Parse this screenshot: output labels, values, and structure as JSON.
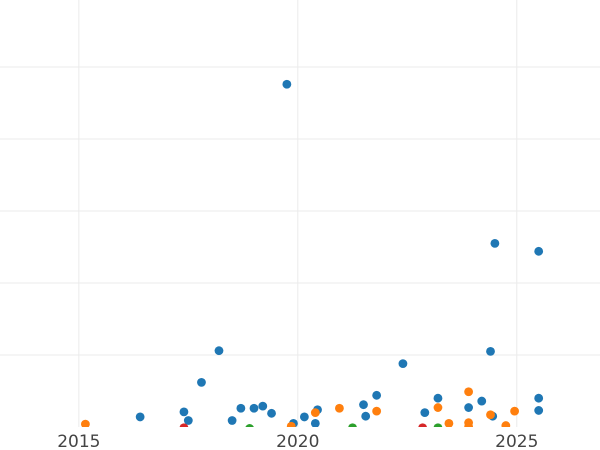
{
  "chart_data": {
    "type": "scatter",
    "title": "",
    "xlabel": "",
    "ylabel": "",
    "xlim": [
      2013.2,
      2026.9
    ],
    "ylim": [
      0,
      60
    ],
    "x_ticks": [
      2015,
      2020,
      2025
    ],
    "x_tick_labels": [
      "2015",
      "2020",
      "2025"
    ],
    "y_gridlines": [
      10,
      20,
      30,
      40,
      50,
      60
    ],
    "grid": true,
    "legend": "none",
    "series": [
      {
        "color": "#1f77b4",
        "points": [
          {
            "x": 2016.4,
            "y": 1.4
          },
          {
            "x": 2017.4,
            "y": 2.1
          },
          {
            "x": 2017.5,
            "y": 0.9
          },
          {
            "x": 2017.8,
            "y": 6.2
          },
          {
            "x": 2018.2,
            "y": 10.6
          },
          {
            "x": 2018.5,
            "y": 0.9
          },
          {
            "x": 2018.7,
            "y": 2.6
          },
          {
            "x": 2019.0,
            "y": 2.6
          },
          {
            "x": 2019.2,
            "y": 2.9
          },
          {
            "x": 2019.4,
            "y": 1.9
          },
          {
            "x": 2019.75,
            "y": 47.6
          },
          {
            "x": 2019.9,
            "y": 0.5
          },
          {
            "x": 2020.15,
            "y": 1.4
          },
          {
            "x": 2020.4,
            "y": 0.5
          },
          {
            "x": 2020.45,
            "y": 2.4
          },
          {
            "x": 2021.5,
            "y": 3.1
          },
          {
            "x": 2021.55,
            "y": 1.5
          },
          {
            "x": 2021.8,
            "y": 4.4
          },
          {
            "x": 2022.4,
            "y": 8.8
          },
          {
            "x": 2022.9,
            "y": 2.0
          },
          {
            "x": 2023.2,
            "y": 4.0
          },
          {
            "x": 2023.9,
            "y": 2.7
          },
          {
            "x": 2024.2,
            "y": 3.6
          },
          {
            "x": 2024.4,
            "y": 10.5
          },
          {
            "x": 2024.45,
            "y": 1.5
          },
          {
            "x": 2024.5,
            "y": 25.5
          },
          {
            "x": 2025.5,
            "y": 24.4
          },
          {
            "x": 2025.5,
            "y": 4.0
          },
          {
            "x": 2025.5,
            "y": 2.3
          }
        ]
      },
      {
        "color": "#ff7f0e",
        "points": [
          {
            "x": 2015.15,
            "y": 0.4
          },
          {
            "x": 2019.85,
            "y": 0.1
          },
          {
            "x": 2020.4,
            "y": 2.0
          },
          {
            "x": 2020.95,
            "y": 2.6
          },
          {
            "x": 2021.8,
            "y": 2.2
          },
          {
            "x": 2023.2,
            "y": 2.7
          },
          {
            "x": 2023.45,
            "y": 0.5
          },
          {
            "x": 2023.9,
            "y": 0.6
          },
          {
            "x": 2023.9,
            "y": 4.9
          },
          {
            "x": 2023.9,
            "y": 0.0
          },
          {
            "x": 2024.4,
            "y": 1.7
          },
          {
            "x": 2024.75,
            "y": 0.2
          },
          {
            "x": 2024.95,
            "y": 2.2
          }
        ]
      },
      {
        "color": "#2ca02c",
        "points": [
          {
            "x": 2018.9,
            "y": -0.2
          },
          {
            "x": 2021.25,
            "y": -0.1
          },
          {
            "x": 2023.2,
            "y": -0.1
          }
        ]
      },
      {
        "color": "#d62728",
        "points": [
          {
            "x": 2017.4,
            "y": -0.1
          },
          {
            "x": 2022.85,
            "y": -0.1
          }
        ]
      }
    ]
  }
}
